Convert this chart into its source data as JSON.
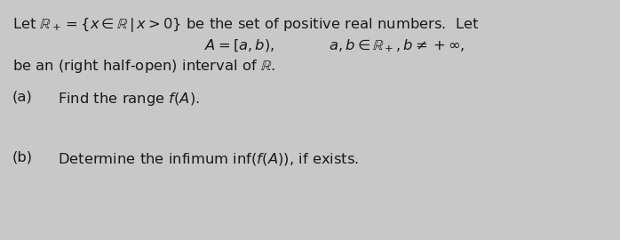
{
  "background_color": "#c8c8c8",
  "text_color": "#1a1a1a",
  "line1": "Let $\\mathbb{R}_+ = \\{x\\in\\mathbb{R}\\,|\\,x>0\\}$ be the set of positive real numbers.  Let",
  "line2a": "$A = [a,b),$",
  "line2b": "$a,b\\in\\mathbb{R}_+,b\\neq +\\infty,$",
  "line3": "be an (right half-open) interval of $\\mathbb{R}$.",
  "line4_label": "(a)",
  "line4_text": "Find the range $f(A)$.",
  "line5_label": "(b)",
  "line5_text": "Determine the infimum $\\mathrm{inf}(f(A))$, if exists.",
  "fontsize": 11.8,
  "fig_width": 6.98,
  "fig_height": 2.7,
  "dpi": 100
}
